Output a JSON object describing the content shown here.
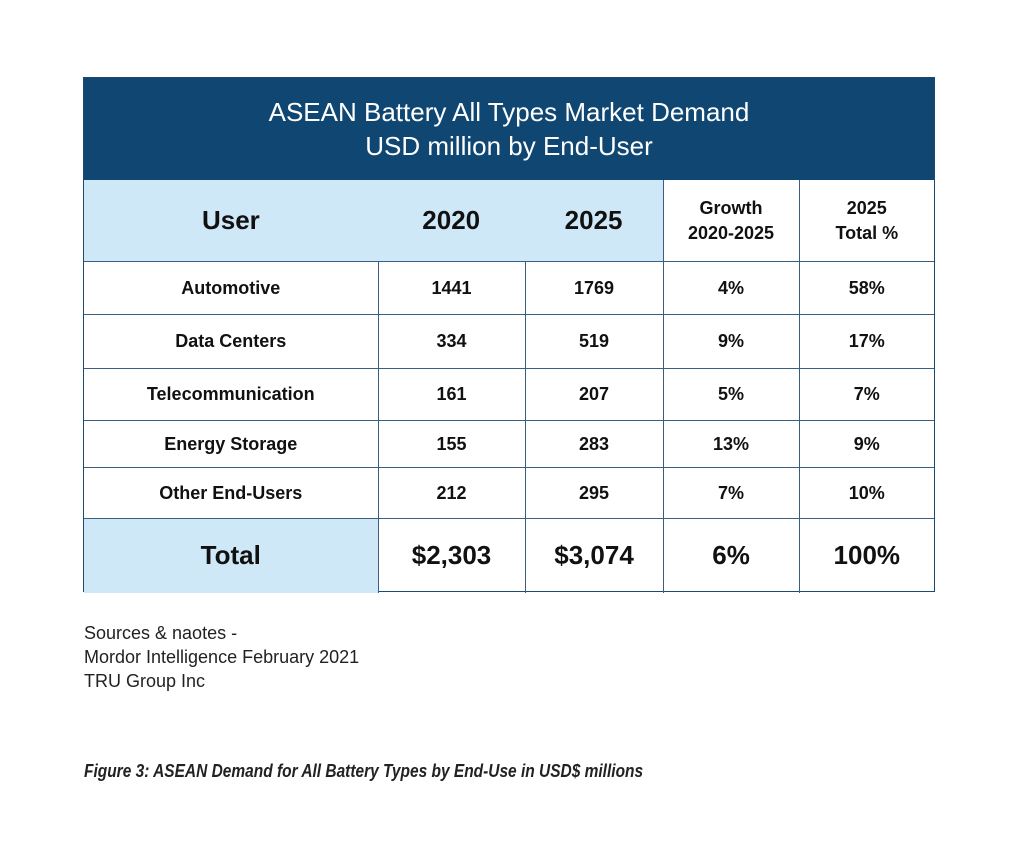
{
  "title": {
    "line1": "ASEAN Battery All Types Market Demand",
    "line2": "USD million by End-User"
  },
  "headers": {
    "user": "User",
    "y2020": "2020",
    "y2025": "2025",
    "growth_line1": "Growth",
    "growth_line2": "2020-2025",
    "share_line1": "2025",
    "share_line2": "Total %"
  },
  "rows": [
    {
      "user": "Automotive",
      "v2020": "1441",
      "v2025": "1769",
      "growth": "4%",
      "share": "58%"
    },
    {
      "user": "Data Centers",
      "v2020": "334",
      "v2025": "519",
      "growth": "9%",
      "share": "17%"
    },
    {
      "user": "Telecommunication",
      "v2020": "161",
      "v2025": "207",
      "growth": "5%",
      "share": "7%"
    },
    {
      "user": "Energy Storage",
      "v2020": "155",
      "v2025": "283",
      "growth": "13%",
      "share": "9%"
    },
    {
      "user": "Other End-Users",
      "v2020": "212",
      "v2025": "295",
      "growth": "7%",
      "share": "10%"
    }
  ],
  "total": {
    "label": "Total",
    "v2020": "$2,303",
    "v2025": "$3,074",
    "growth": "6%",
    "share": "100%"
  },
  "notes": [
    "Sources & naotes -",
    "Mordor Intelligence February 2021",
    "TRU Group Inc"
  ],
  "caption": "Figure 3: ASEAN Demand for All Battery Types by End-Use in USD$ millions",
  "colors": {
    "title_band": "#0f4772",
    "header_fill": "#cfe8f8",
    "border": "#3a5f80"
  }
}
